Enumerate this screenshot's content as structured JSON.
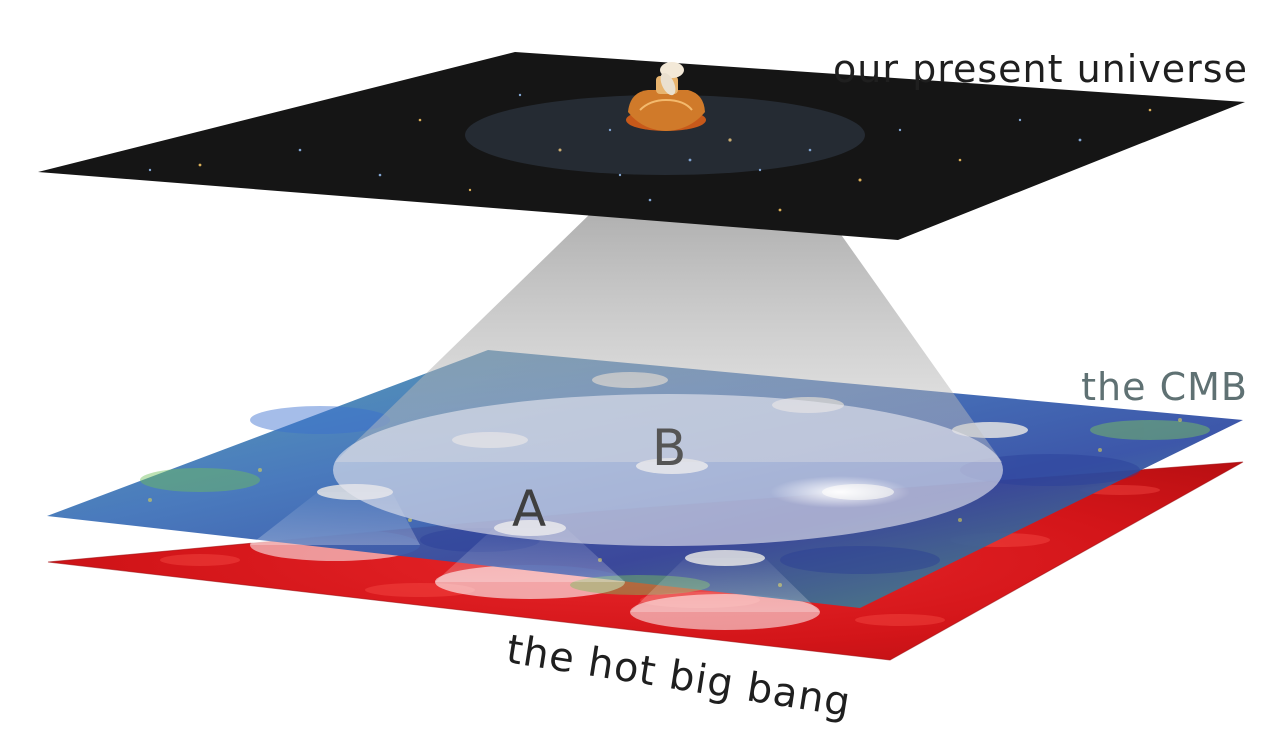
{
  "labels": {
    "present_universe": "our present universe",
    "cmb": "the CMB",
    "big_bang": "the hot big bang",
    "point_a": "A",
    "point_b": "B"
  },
  "colors": {
    "present_universe_plane": "#141414",
    "cmb_plane_blue": "#3f7ab8",
    "cmb_plane_green": "#5aa67a",
    "big_bang_plane": "#d61418",
    "light_cone": "#9a9a9a",
    "present_label": "#1f1f1f",
    "cmb_label": "#5f7173",
    "big_bang_label": "#1f1f1f",
    "point_label": "#4a4a4a",
    "satellite": "#d07a2a"
  },
  "icons": {
    "observer": "satellite-icon"
  }
}
